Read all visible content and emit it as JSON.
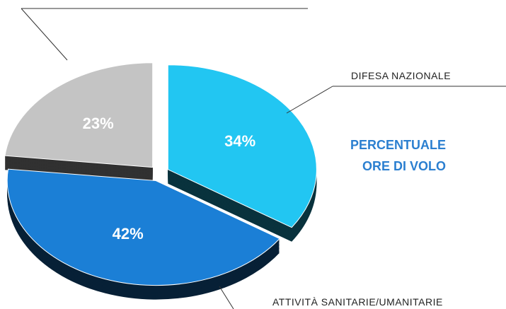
{
  "chart_data": {
    "type": "pie",
    "title": "PERCENTUALE ORE DI VOLO",
    "categories": [
      "DIFESA NAZIONALE",
      "ATTIVITÀ SANITARIE/UMANITARIE",
      null
    ],
    "values": [
      34,
      42,
      23
    ],
    "value_labels": [
      "34%",
      "42%",
      "23%"
    ],
    "colors": [
      "#22c6f2",
      "#1b7fd6",
      "#c4c4c4"
    ]
  }
}
